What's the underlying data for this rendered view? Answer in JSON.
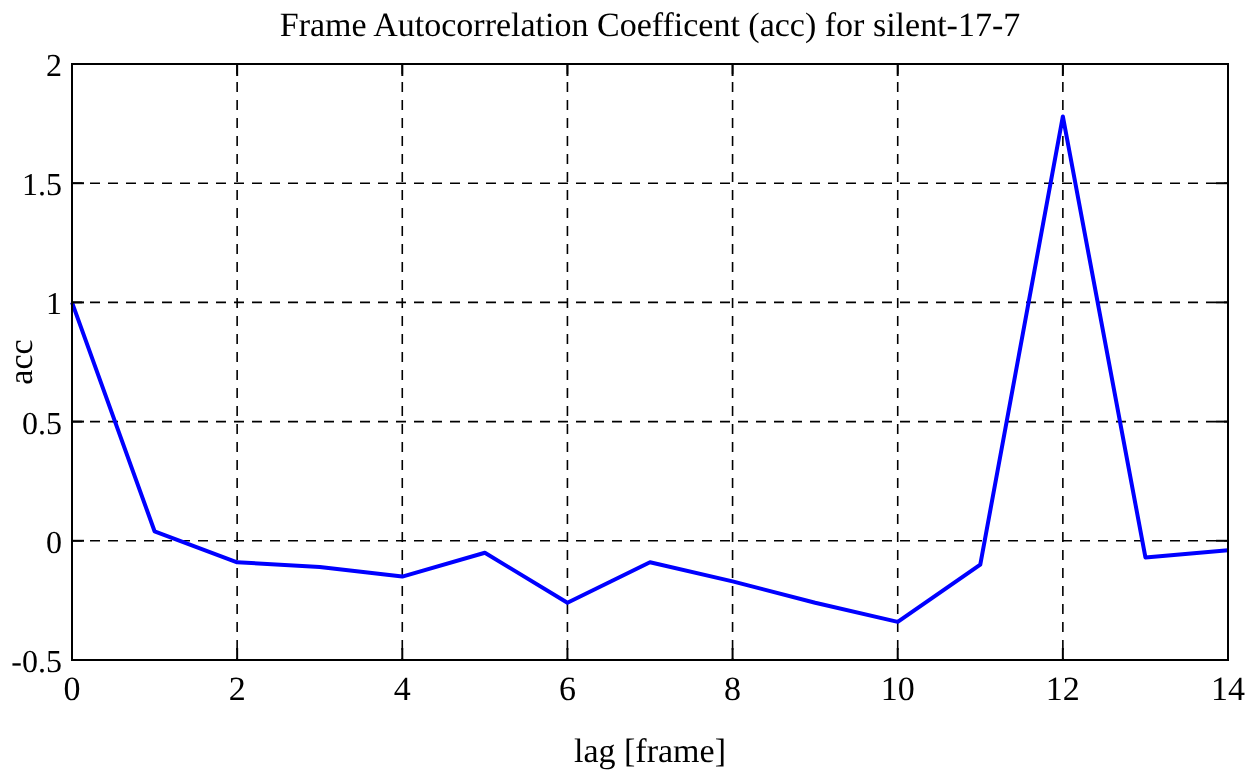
{
  "chart_data": {
    "type": "line",
    "title": "Frame Autocorrelation Coefficent (acc) for silent-17-7",
    "xlabel": "lag [frame]",
    "ylabel": "acc",
    "x": [
      0,
      1,
      2,
      3,
      4,
      5,
      6,
      7,
      8,
      9,
      10,
      11,
      12,
      13,
      14
    ],
    "series": [
      {
        "color": "#0000ff",
        "values": [
          1,
          0.04,
          -0.09,
          -0.11,
          -0.15,
          -0.05,
          -0.26,
          -0.09,
          -0.17,
          -0.26,
          -0.34,
          -0.1,
          1.78,
          -0.07,
          -0.04
        ]
      }
    ],
    "xlim": [
      0,
      14
    ],
    "xticks": [
      0,
      2,
      4,
      6,
      8,
      10,
      12,
      14
    ],
    "ylim": [
      -0.5,
      2
    ],
    "yticks": [
      -0.5,
      0,
      0.5,
      1,
      1.5,
      2
    ],
    "grid": true,
    "marker": "none",
    "line_style": "solid"
  }
}
